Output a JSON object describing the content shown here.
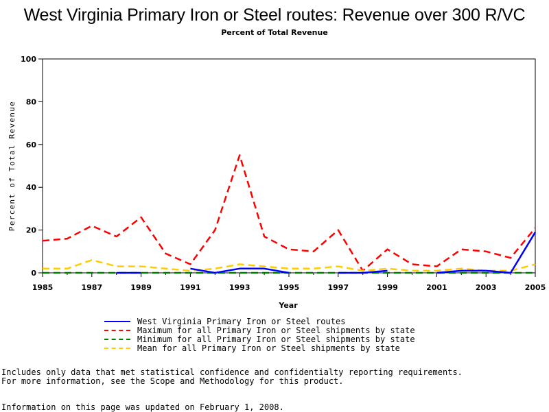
{
  "chart_data": {
    "type": "line",
    "title": "West Virginia Primary Iron or Steel routes: Revenue over 300 R/VC",
    "subtitle": "Percent of Total Revenue",
    "xlabel": "Year",
    "ylabel": "Percent of Total Revenue",
    "x": [
      1985,
      1986,
      1987,
      1988,
      1989,
      1990,
      1991,
      1992,
      1993,
      1994,
      1995,
      1996,
      1997,
      1998,
      1999,
      2000,
      2001,
      2002,
      2003,
      2004,
      2005
    ],
    "xlim": [
      1985,
      2005
    ],
    "ylim": [
      0,
      100
    ],
    "x_ticks": [
      1985,
      1987,
      1989,
      1991,
      1993,
      1995,
      1997,
      1999,
      2001,
      2003,
      2005
    ],
    "y_ticks": [
      0,
      20,
      40,
      60,
      80,
      100
    ],
    "grid": false,
    "legend_position": "bottom",
    "series": [
      {
        "name": "West Virginia Primary Iron or Steel routes",
        "color": "#0000ff",
        "dash": "solid",
        "values": [
          null,
          null,
          null,
          0,
          0,
          null,
          2,
          0,
          2,
          2,
          0,
          null,
          0,
          0,
          1,
          null,
          0,
          1,
          1,
          0,
          19
        ]
      },
      {
        "name": "Maximum for all Primary Iron or Steel shipments by state",
        "color": "#ff0000",
        "dash": "dashed",
        "values": [
          15,
          16,
          22,
          17,
          26,
          9,
          4,
          20,
          55,
          17,
          11,
          10,
          20,
          1,
          11,
          4,
          3,
          11,
          10,
          7,
          21
        ]
      },
      {
        "name": "Minimum for all Primary Iron or Steel shipments by state",
        "color": "#007f00",
        "dash": "dashed",
        "values": [
          0,
          0,
          0,
          0,
          0,
          0,
          0,
          0,
          0,
          0,
          0,
          0,
          0,
          0,
          0,
          0,
          0,
          0,
          0,
          0,
          0
        ]
      },
      {
        "name": "Mean for all Primary Iron or Steel shipments by state",
        "color": "#ffcc00",
        "dash": "dashed",
        "values": [
          2,
          2,
          6,
          3,
          3,
          2,
          1,
          2,
          4,
          3,
          2,
          2,
          3,
          1,
          2,
          1,
          1,
          2,
          1,
          1,
          4
        ]
      }
    ]
  },
  "notes": {
    "line1": "Includes only data that met statistical confidence and confidentialty reporting requirements.",
    "line2": "For more information, see the Scope and Methodology for this product.",
    "updated": "Information on this page was updated on February 1, 2008."
  }
}
